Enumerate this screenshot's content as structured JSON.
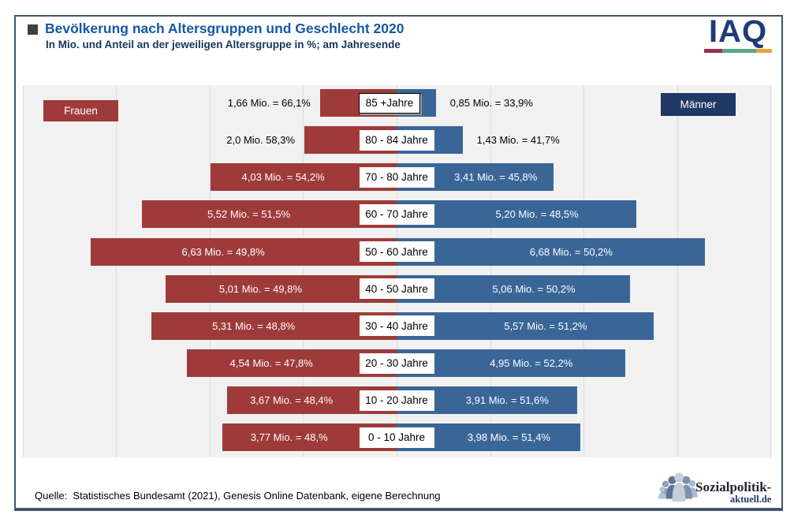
{
  "chart_data": {
    "type": "bar",
    "variant": "horizontal-population-pyramid",
    "title": "Bevölkerung nach Altersgruppen und Geschlecht 2020",
    "subtitle": "In Mio. und Anteil an der jeweiligen Altersgruppe in %; am Jahresende",
    "unit": "Mio.",
    "categories": [
      "85 +Jahre",
      "80 - 84 Jahre",
      "70 - 80 Jahre",
      "60 - 70 Jahre",
      "50 - 60 Jahre",
      "40 - 50 Jahre",
      "30 - 40 Jahre",
      "20 - 30 Jahre",
      "10 - 20 Jahre",
      "0 - 10 Jahre"
    ],
    "series": [
      {
        "name": "Frauen",
        "color": "#9e3b3a",
        "values": [
          1.66,
          2.0,
          4.03,
          5.52,
          6.63,
          5.01,
          5.31,
          4.54,
          3.67,
          3.77
        ]
      },
      {
        "name": "Männer",
        "color": "#3a6697",
        "values": [
          0.85,
          1.43,
          3.41,
          5.2,
          6.68,
          5.06,
          5.57,
          4.95,
          3.91,
          3.98
        ]
      }
    ],
    "value_labels": [
      {
        "age": "85 +Jahre",
        "female": "1,66 Mio. = 66,1%",
        "male": "0,85 Mio. = 33,9%",
        "female_inside": false,
        "male_inside": false,
        "age_boxed": true
      },
      {
        "age": "80 - 84 Jahre",
        "female": "2,0 Mio. 58,3%",
        "male": "1,43 Mio. = 41,7%",
        "female_inside": false,
        "male_inside": false,
        "age_boxed": false
      },
      {
        "age": "70 - 80 Jahre",
        "female": "4,03 Mio. = 54,2%",
        "male": "3,41 Mio. = 45,8%",
        "female_inside": true,
        "male_inside": true,
        "age_boxed": false
      },
      {
        "age": "60 - 70 Jahre",
        "female": "5,52 Mio. = 51,5%",
        "male": "5,20 Mio. = 48,5%",
        "female_inside": true,
        "male_inside": true,
        "age_boxed": false
      },
      {
        "age": "50 - 60 Jahre",
        "female": "6,63 Mio. = 49,8%",
        "male": "6,68 Mio. = 50,2%",
        "female_inside": true,
        "male_inside": true,
        "age_boxed": false
      },
      {
        "age": "40 - 50 Jahre",
        "female": "5,01 Mio. = 49,8%",
        "male": "5,06 Mio. = 50,2%",
        "female_inside": true,
        "male_inside": true,
        "age_boxed": false
      },
      {
        "age": "30 - 40 Jahre",
        "female": "5,31 Mio. = 48,8%",
        "male": "5,57 Mio. = 51,2%",
        "female_inside": true,
        "male_inside": true,
        "age_boxed": false
      },
      {
        "age": "20 - 30 Jahre",
        "female": "4,54 Mio. = 47,8%",
        "male": "4,95 Mio. = 52,2%",
        "female_inside": true,
        "male_inside": true,
        "age_boxed": false
      },
      {
        "age": "10 - 20 Jahre",
        "female": "3,67 Mio. = 48,4%",
        "male": "3,91 Mio. = 51,6%",
        "female_inside": true,
        "male_inside": true,
        "age_boxed": false
      },
      {
        "age": "0 - 10 Jahre",
        "female": "3,77 Mio. = 48,%",
        "male": "3,98 Mio. = 51,4%",
        "female_inside": true,
        "male_inside": true,
        "age_boxed": false
      }
    ],
    "axis": {
      "gridlines": true,
      "mio_per_gridline": 2,
      "max_mio_each_side": 8,
      "center_axis": true
    },
    "legend_position": "top-corners",
    "colors": {
      "female_bar": "#9e3b3a",
      "male_bar": "#3a6697",
      "male_legend_box": "#1f3864",
      "plot_background": "#f1f1f1",
      "gridline": "#dcdcdc",
      "title_blue": "#1459a6",
      "subtitle_navy": "#17365d",
      "frame_border": "#44546a"
    }
  },
  "logo_iaq": {
    "text": "IAQ",
    "underline_colors": [
      "#a02d52",
      "#5aa884",
      "#e9a23b"
    ]
  },
  "footer": {
    "source": "Quelle:  Statistisches Bundesamt (2021), Genesis Online Datenbank, eigene Berechnung"
  },
  "logo_sozialpolitik": {
    "line1": "Sozialpolitik-",
    "line2": "aktuell.de"
  }
}
